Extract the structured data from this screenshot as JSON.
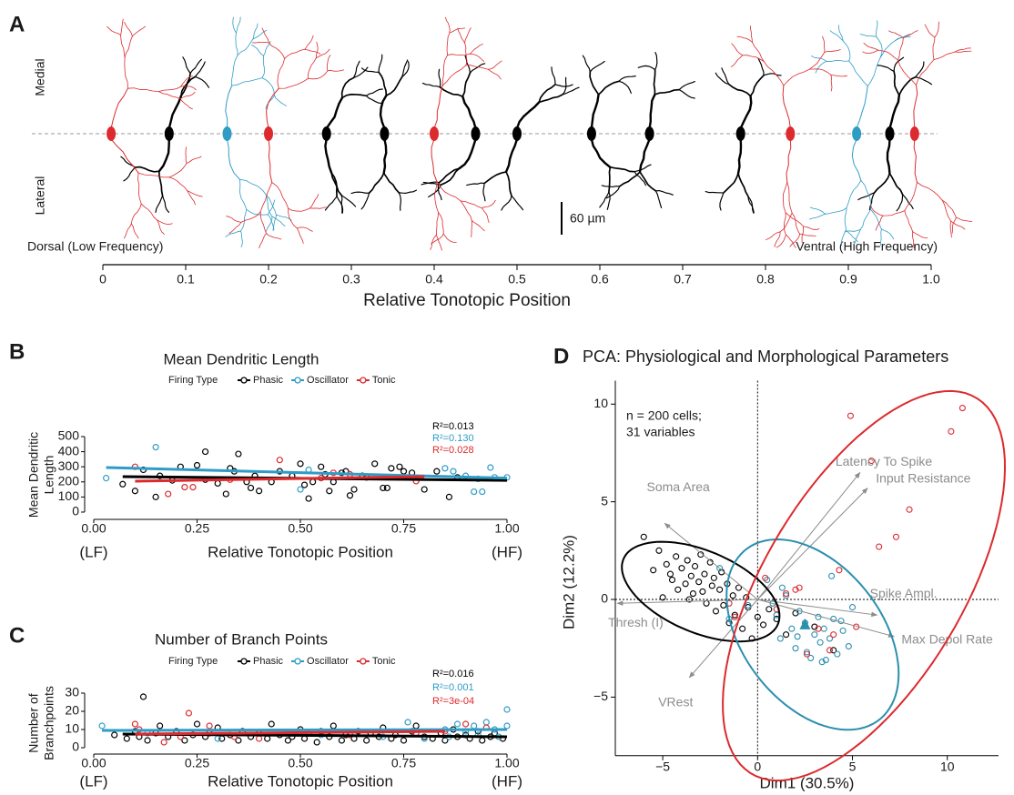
{
  "chart_data": [
    {
      "type": "morphology",
      "panel_label": "A",
      "xlabel": "Relative Tonotopic Position",
      "side_labels": [
        "Medial",
        "Lateral"
      ],
      "end_labels": [
        "Dorsal (Low Frequency)",
        "Ventral (High Frequency)"
      ],
      "scale_bar": "60 µm",
      "xlim": [
        0,
        1
      ],
      "xticks": [
        0,
        0.1,
        0.2,
        0.3,
        0.4,
        0.5,
        0.6,
        0.7,
        0.8,
        0.9,
        {
          "value": 1,
          "label": "1.0"
        }
      ],
      "series": [
        {
          "color": "#000000",
          "x": [
            0.08,
            0.27,
            0.34,
            0.45,
            0.5,
            0.59,
            0.66,
            0.77,
            0.95
          ]
        },
        {
          "color": "#2f9cc6",
          "x": [
            0.15,
            0.91
          ]
        },
        {
          "color": "#dc2a2e",
          "x": [
            0.01,
            0.2,
            0.4,
            0.83,
            0.98
          ]
        }
      ]
    },
    {
      "type": "scatter",
      "panel_label": "B",
      "title": "Mean Dendritic Length",
      "legend_title": "Firing Type",
      "ylabel": [
        "Mean Dendritic",
        "Length"
      ],
      "xlabel": "Relative Tonotopic Position",
      "x_end_labels": [
        "(LF)",
        "(HF)"
      ],
      "xlim": [
        -0.05,
        1.05
      ],
      "ylim": [
        -20,
        530
      ],
      "xticks": [
        {
          "value": 0,
          "label": "0.00"
        },
        0.25,
        {
          "value": 0.5,
          "label": "0.50"
        },
        0.75,
        {
          "value": 1,
          "label": "1.00"
        }
      ],
      "yticks": [
        0,
        100,
        200,
        300,
        400,
        500
      ],
      "series": [
        {
          "name": "Phasic",
          "color": "#000000",
          "r2_label": "R²=0.013",
          "x": [
            0.07,
            0.1,
            0.12,
            0.15,
            0.16,
            0.19,
            0.21,
            0.25,
            0.27,
            0.27,
            0.3,
            0.32,
            0.33,
            0.34,
            0.35,
            0.37,
            0.38,
            0.39,
            0.4,
            0.43,
            0.45,
            0.48,
            0.5,
            0.51,
            0.52,
            0.53,
            0.55,
            0.56,
            0.57,
            0.58,
            0.6,
            0.61,
            0.62,
            0.63,
            0.65,
            0.66,
            0.68,
            0.7,
            0.71,
            0.72,
            0.74,
            0.75,
            0.77,
            0.8,
            0.83,
            0.86,
            0.88
          ],
          "values": [
            185,
            140,
            280,
            100,
            240,
            210,
            300,
            310,
            400,
            215,
            190,
            120,
            290,
            270,
            385,
            200,
            160,
            240,
            140,
            200,
            270,
            240,
            320,
            180,
            90,
            200,
            300,
            250,
            140,
            200,
            260,
            270,
            110,
            150,
            240,
            230,
            320,
            160,
            160,
            290,
            300,
            270,
            260,
            150,
            270,
            100,
            230
          ],
          "fit": {
            "x": [
              0.07,
              1.0
            ],
            "values": [
              235,
              210
            ]
          }
        },
        {
          "name": "Oscillator",
          "color": "#2f9cc6",
          "r2_label": "R²=0.130",
          "x": [
            0.03,
            0.15,
            0.5,
            0.52,
            0.85,
            0.87,
            0.9,
            0.92,
            0.93,
            0.94,
            0.96,
            0.97,
            1.0
          ],
          "values": [
            225,
            430,
            150,
            280,
            290,
            270,
            240,
            135,
            220,
            135,
            295,
            230,
            230
          ],
          "fit": {
            "x": [
              0.03,
              1.0
            ],
            "values": [
              295,
              225
            ]
          }
        },
        {
          "name": "Tonic",
          "color": "#dc2a2e",
          "r2_label": "R²=0.028",
          "x": [
            0.1,
            0.18,
            0.22,
            0.24,
            0.33,
            0.45,
            0.55,
            0.58,
            0.62,
            0.78
          ],
          "values": [
            300,
            120,
            165,
            165,
            215,
            345,
            225,
            260,
            250,
            205
          ],
          "fit": {
            "x": [
              0.1,
              0.8
            ],
            "values": [
              205,
              235
            ]
          }
        }
      ]
    },
    {
      "type": "scatter",
      "panel_label": "C",
      "title": "Number of Branch Points",
      "legend_title": "Firing Type",
      "ylabel": [
        "Number of",
        "Branchpoints"
      ],
      "xlabel": "Relative Tonotopic Position",
      "x_end_labels": [
        "(LF)",
        "(HF)"
      ],
      "xlim": [
        -0.05,
        1.05
      ],
      "ylim": [
        -2,
        32
      ],
      "xticks": [
        {
          "value": 0,
          "label": "0.00"
        },
        0.25,
        {
          "value": 0.5,
          "label": "0.50"
        },
        0.75,
        {
          "value": 1,
          "label": "1.00"
        }
      ],
      "yticks": [
        0,
        10,
        20,
        30
      ],
      "series": [
        {
          "name": "Phasic",
          "color": "#000000",
          "r2_label": "R²=0.016",
          "x": [
            0.05,
            0.08,
            0.1,
            0.11,
            0.13,
            0.15,
            0.16,
            0.18,
            0.2,
            0.22,
            0.24,
            0.25,
            0.27,
            0.28,
            0.3,
            0.31,
            0.33,
            0.35,
            0.36,
            0.38,
            0.4,
            0.42,
            0.43,
            0.45,
            0.47,
            0.48,
            0.5,
            0.51,
            0.52,
            0.54,
            0.55,
            0.57,
            0.58,
            0.6,
            0.61,
            0.63,
            0.64,
            0.66,
            0.67,
            0.69,
            0.7,
            0.72,
            0.73,
            0.75,
            0.77,
            0.78,
            0.8,
            0.82,
            0.84,
            0.85,
            0.87,
            0.88,
            0.9,
            0.91,
            0.93,
            0.94,
            0.96,
            0.97,
            0.99,
            0.12
          ],
          "values": [
            7,
            5,
            9,
            6,
            4,
            8,
            12,
            6,
            9,
            4,
            7,
            13,
            6,
            8,
            11,
            5,
            7,
            4,
            9,
            6,
            8,
            5,
            13,
            7,
            4,
            6,
            10,
            5,
            8,
            3,
            9,
            6,
            12,
            4,
            7,
            5,
            9,
            4,
            8,
            6,
            11,
            5,
            7,
            4,
            9,
            12,
            6,
            5,
            8,
            4,
            10,
            6,
            7,
            5,
            9,
            4,
            6,
            8,
            5,
            28
          ],
          "fit": {
            "x": [
              0.07,
              1.0
            ],
            "values": [
              7.5,
              6
            ]
          }
        },
        {
          "name": "Oscillator",
          "color": "#2f9cc6",
          "r2_label": "R²=0.001",
          "x": [
            0.02,
            0.13,
            0.3,
            0.55,
            0.7,
            0.76,
            0.8,
            0.85,
            0.86,
            0.88,
            0.9,
            0.92,
            0.93,
            0.95,
            0.97,
            0.98,
            1.0,
            1.0
          ],
          "values": [
            12,
            8,
            5,
            7,
            6,
            14,
            5,
            10,
            6,
            13,
            9,
            12,
            7,
            14,
            10,
            6,
            21,
            12
          ],
          "fit": {
            "x": [
              0.02,
              1.0
            ],
            "values": [
              9.5,
              10
            ]
          }
        },
        {
          "name": "Tonic",
          "color": "#dc2a2e",
          "r2_label": "R²=3e-04",
          "x": [
            0.1,
            0.11,
            0.17,
            0.21,
            0.23,
            0.28,
            0.34,
            0.4,
            0.47,
            0.62,
            0.78,
            0.85,
            0.9,
            0.95
          ],
          "values": [
            13,
            10,
            3,
            6,
            19,
            12,
            6,
            5,
            8,
            7,
            8,
            9,
            13,
            11
          ],
          "fit": {
            "x": [
              0.1,
              0.85
            ],
            "values": [
              7.5,
              9
            ]
          }
        }
      ]
    },
    {
      "type": "pca",
      "panel_label": "D",
      "title": "PCA: Physiological and Morphological Parameters",
      "annotation": [
        "n = 200 cells;",
        "31 variables"
      ],
      "xlabel": "Dim1 (30.5%)",
      "ylabel": "Dim2 (12.2%)",
      "xlim": [
        -7.5,
        12.7
      ],
      "ylim": [
        -8,
        11.2
      ],
      "xticks": [
        {
          "value": -5,
          "label": "−5"
        },
        0,
        5,
        10
      ],
      "yticks": [
        {
          "value": -5,
          "label": "−5"
        },
        0,
        5,
        10
      ],
      "zero_lines": true,
      "series": [
        {
          "color": "#000000",
          "x": [
            -6,
            -5.5,
            -5.2,
            -5,
            -4.8,
            -4.5,
            -4.3,
            -4.2,
            -4,
            -3.8,
            -3.7,
            -3.5,
            -3.4,
            -3.3,
            -3.1,
            -3,
            -2.9,
            -2.8,
            -2.7,
            -2.5,
            -2.4,
            -2.3,
            -2.2,
            -2,
            -1.9,
            -1.8,
            -1.6,
            -1.5,
            -1.3,
            -1.2,
            -1,
            -0.8,
            -0.6,
            -0.5,
            -0.3,
            0,
            0.3,
            0.6,
            1,
            1.5,
            2,
            3,
            4,
            -4.6,
            -3.6
          ],
          "values": [
            3.2,
            1.5,
            2.5,
            0.1,
            1.8,
            1.0,
            2.2,
            0.5,
            1.6,
            0.8,
            2.0,
            1.2,
            0.3,
            1.7,
            0.9,
            2.3,
            0.4,
            1.3,
            -0.2,
            1.9,
            0.7,
            1.1,
            -0.6,
            0.5,
            1.4,
            -0.3,
            0.8,
            -1.2,
            0.2,
            -0.8,
            0.6,
            -1.5,
            0.1,
            -0.4,
            -2.0,
            -0.9,
            -1.3,
            -0.5,
            -1.0,
            -1.8,
            -0.7,
            -1.4,
            -2.6,
            1.3,
            0.0
          ],
          "ellipse": {
            "cx": -3.0,
            "cy": 0.4,
            "rx": 4.4,
            "ry": 2.1,
            "angle": -22
          }
        },
        {
          "color": "#2b8fae",
          "x": [
            -2,
            -1.5,
            -0.5,
            0.5,
            1,
            1.2,
            1.5,
            1.8,
            2,
            2.2,
            2.5,
            2.8,
            3,
            3.2,
            3.3,
            3.5,
            3.6,
            3.8,
            4,
            4.2,
            4.5,
            4.8,
            5,
            1.3,
            2.6,
            3.4,
            0.8,
            2.1,
            4.4,
            3.9
          ],
          "values": [
            1.6,
            -1.0,
            -0.3,
            1.0,
            -0.8,
            -2.0,
            0.2,
            -1.5,
            -2.5,
            -0.6,
            -1.2,
            -3.0,
            -1.8,
            -0.9,
            -2.2,
            -1.5,
            -3.1,
            -2.0,
            -1.0,
            -2.8,
            -1.6,
            -2.4,
            -0.4,
            0.6,
            -2.7,
            -3.2,
            -0.2,
            -1.9,
            -1.1,
            1.2
          ],
          "ellipse": {
            "cx": 2.9,
            "cy": -1.8,
            "rx": 5.6,
            "ry": 3.6,
            "angle": -50
          },
          "centroid": [
            2.5,
            -1.3
          ]
        },
        {
          "color": "#dc2a2e",
          "x": [
            10.8,
            10.2,
            4.9,
            6,
            8,
            7.3,
            6.4,
            4.3,
            2.2,
            2,
            1.5,
            4,
            3.2,
            -1.2,
            -1.5,
            0.4,
            3.8,
            2.6,
            5.2,
            1
          ],
          "values": [
            9.8,
            8.6,
            9.4,
            7.1,
            4.6,
            3.2,
            2.7,
            1.5,
            0.6,
            0.5,
            0.3,
            -1.8,
            -1.5,
            -0.9,
            -0.2,
            1.1,
            -2.6,
            -2.8,
            -1.4,
            -0.5
          ],
          "ellipse": {
            "cx": 5.6,
            "cy": 0.7,
            "rx": 11.3,
            "ry": 5.2,
            "angle": 58
          }
        }
      ],
      "arrows": [
        {
          "label": "Latency To Spike",
          "x": 5.4,
          "y": 6.5
        },
        {
          "label": "Input Resistance",
          "x": 5.8,
          "y": 5.7
        },
        {
          "label": "Soma Area",
          "x": -4.9,
          "y": 3.9
        },
        {
          "label": "Spike Ampl.",
          "x": 6.3,
          "y": -0.8
        },
        {
          "label": "Max Depol Rate",
          "x": 7.2,
          "y": -1.9
        },
        {
          "label": "Thresh (I)",
          "x": -7.4,
          "y": -0.2
        },
        {
          "label": "VRest",
          "x": -3.6,
          "y": -4.0
        }
      ]
    }
  ]
}
